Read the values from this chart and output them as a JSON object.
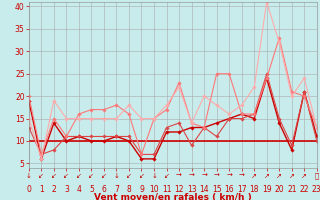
{
  "background_color": "#c8ecec",
  "grid_color": "#aaaaaa",
  "xlabel": "Vent moyen/en rafales ( km/h )",
  "xlim": [
    0,
    23
  ],
  "ylim": [
    4,
    41
  ],
  "yticks": [
    5,
    10,
    15,
    20,
    25,
    30,
    35,
    40
  ],
  "xticks": [
    0,
    1,
    2,
    3,
    4,
    5,
    6,
    7,
    8,
    9,
    10,
    11,
    12,
    13,
    14,
    15,
    16,
    17,
    18,
    19,
    20,
    21,
    22,
    23
  ],
  "series": [
    {
      "x": [
        0,
        1,
        2,
        3,
        4,
        5,
        6,
        7,
        8,
        9,
        10,
        11,
        12,
        13,
        14,
        15,
        16,
        17,
        18,
        19,
        20,
        21,
        22,
        23
      ],
      "y": [
        19,
        6,
        14,
        10,
        11,
        10,
        10,
        11,
        10,
        6,
        6,
        12,
        12,
        13,
        13,
        14,
        15,
        16,
        15,
        24,
        14,
        8,
        21,
        11
      ],
      "color": "#cc0000",
      "lw": 1.0,
      "marker": "D",
      "ms": 1.8
    },
    {
      "x": [
        0,
        1,
        2,
        3,
        4,
        5,
        6,
        7,
        8,
        9,
        10,
        11,
        12,
        13,
        14,
        15,
        16,
        17,
        18,
        19,
        20,
        21,
        22,
        23
      ],
      "y": [
        10,
        10,
        10,
        10,
        10,
        10,
        10,
        10,
        10,
        10,
        10,
        10,
        10,
        10,
        10,
        10,
        10,
        10,
        10,
        10,
        10,
        10,
        10,
        10
      ],
      "color": "#cc0000",
      "lw": 1.2,
      "marker": null,
      "ms": 0
    },
    {
      "x": [
        0,
        1,
        2,
        3,
        4,
        5,
        6,
        7,
        8,
        9,
        10,
        11,
        12,
        13,
        14,
        15,
        16,
        17,
        18,
        19,
        20,
        21,
        22,
        23
      ],
      "y": [
        13,
        7,
        8,
        11,
        11,
        11,
        11,
        11,
        11,
        7,
        7,
        13,
        14,
        9,
        13,
        11,
        15,
        15,
        16,
        25,
        15,
        9,
        21,
        10
      ],
      "color": "#dd4444",
      "lw": 0.8,
      "marker": "D",
      "ms": 1.8
    },
    {
      "x": [
        0,
        1,
        2,
        3,
        4,
        5,
        6,
        7,
        8,
        9,
        10,
        11,
        12,
        13,
        14,
        15,
        16,
        17,
        18,
        19,
        20,
        21,
        22,
        23
      ],
      "y": [
        20,
        7,
        15,
        11,
        16,
        17,
        17,
        18,
        16,
        7,
        15,
        17,
        23,
        14,
        13,
        25,
        25,
        16,
        16,
        24,
        33,
        21,
        20,
        13
      ],
      "color": "#ff7777",
      "lw": 0.8,
      "marker": "D",
      "ms": 1.8
    },
    {
      "x": [
        0,
        1,
        2,
        3,
        4,
        5,
        6,
        7,
        8,
        9,
        10,
        11,
        12,
        13,
        14,
        15,
        16,
        17,
        18,
        19,
        20,
        21,
        22,
        23
      ],
      "y": [
        15,
        6,
        19,
        15,
        15,
        15,
        15,
        15,
        18,
        15,
        15,
        18,
        22,
        14,
        20,
        18,
        16,
        18,
        22,
        41,
        32,
        20,
        24,
        13
      ],
      "color": "#ffaaaa",
      "lw": 0.8,
      "marker": "D",
      "ms": 1.8
    }
  ],
  "wind_arrows": [
    "↓",
    "↙",
    "↙",
    "↙",
    "↙",
    "↙",
    "↙",
    "↓",
    "↙",
    "↙",
    "↓",
    "↙",
    "→",
    "→",
    "→",
    "→",
    "→",
    "→",
    "↗",
    "↗",
    "↗",
    "↗",
    "↗",
    "⤷"
  ],
  "tick_color": "#cc0000",
  "label_color": "#cc0000",
  "tick_fontsize": 5.5,
  "xlabel_fontsize": 6.5,
  "arrow_fontsize": 5.0
}
